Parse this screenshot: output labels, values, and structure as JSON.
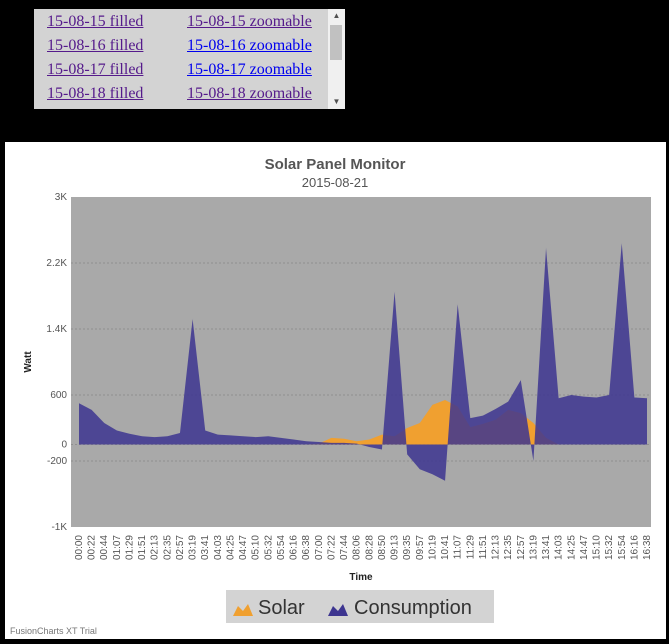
{
  "links": [
    {
      "filled": "15-08-15 filled",
      "zoomable": "15-08-15 zoomable",
      "zoom_visited": true
    },
    {
      "filled": "15-08-16 filled",
      "zoomable": "15-08-16 zoomable",
      "zoom_visited": false
    },
    {
      "filled": "15-08-17 filled",
      "zoomable": "15-08-17 zoomable",
      "zoom_visited": false
    },
    {
      "filled": "15-08-18 filled",
      "zoomable": "15-08-18 zoomable",
      "zoom_visited": true
    }
  ],
  "watermark": "FusionCharts XT Trial",
  "colors": {
    "solar": "#f0a030",
    "consumption": "#3d3590",
    "plot_bg": "#a9a9a9",
    "legend_bg": "#d3d3d3"
  },
  "chart_data": {
    "type": "area",
    "title": "Solar Panel Monitor",
    "subtitle": "2015-08-21",
    "xlabel": "Time",
    "ylabel": "Watt",
    "ylim": [
      -1000,
      3000
    ],
    "y_ticks": [
      {
        "value": 3000,
        "label": "3K"
      },
      {
        "value": 2200,
        "label": "2.2K"
      },
      {
        "value": 1400,
        "label": "1.4K"
      },
      {
        "value": 600,
        "label": "600"
      },
      {
        "value": 0,
        "label": "0"
      },
      {
        "value": -200,
        "label": "-200"
      },
      {
        "value": -1000,
        "label": "-1K"
      }
    ],
    "grid": true,
    "legend_position": "bottom",
    "x": [
      "00:00",
      "00:22",
      "00:44",
      "01:07",
      "01:29",
      "01:51",
      "02:13",
      "02:35",
      "02:57",
      "03:19",
      "03:41",
      "04:03",
      "04:25",
      "04:47",
      "05:10",
      "05:32",
      "05:54",
      "06:16",
      "06:38",
      "07:00",
      "07:22",
      "07:44",
      "08:06",
      "08:28",
      "08:50",
      "09:13",
      "09:35",
      "09:57",
      "10:19",
      "10:41",
      "11:07",
      "11:29",
      "11:51",
      "12:13",
      "12:35",
      "12:57",
      "13:19",
      "13:41",
      "14:03",
      "14:25",
      "14:47",
      "15:10",
      "15:32",
      "15:54",
      "16:16",
      "16:38"
    ],
    "series": [
      {
        "name": "Solar",
        "values": [
          0,
          0,
          0,
          0,
          0,
          0,
          0,
          0,
          0,
          0,
          0,
          0,
          0,
          0,
          0,
          0,
          0,
          0,
          0,
          10,
          80,
          70,
          40,
          60,
          120,
          100,
          200,
          260,
          480,
          540,
          460,
          210,
          250,
          300,
          420,
          380,
          260,
          80,
          0,
          0,
          0,
          0,
          0,
          0,
          0,
          0
        ]
      },
      {
        "name": "Consumption",
        "values": [
          500,
          420,
          260,
          170,
          130,
          100,
          90,
          100,
          140,
          1520,
          170,
          120,
          110,
          100,
          90,
          100,
          80,
          60,
          40,
          30,
          20,
          20,
          10,
          -30,
          -60,
          1850,
          -120,
          -300,
          -360,
          -440,
          1700,
          320,
          350,
          430,
          520,
          780,
          -200,
          2380,
          560,
          600,
          580,
          570,
          600,
          2440,
          570,
          560
        ]
      }
    ]
  }
}
